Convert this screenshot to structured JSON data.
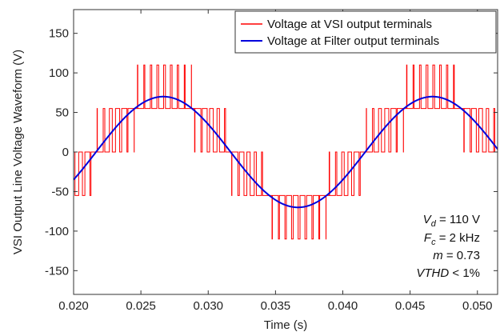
{
  "chart_data": {
    "type": "line",
    "xlabel": "Time (s)",
    "ylabel": "VSI Output Line Voltage Waveform (V)",
    "xlim": [
      0.02,
      0.0515
    ],
    "ylim": [
      -180,
      180
    ],
    "x_ticks": [
      0.02,
      0.025,
      0.03,
      0.035,
      0.04,
      0.045,
      0.05
    ],
    "x_tick_labels": [
      "0.020",
      "0.025",
      "0.030",
      "0.035",
      "0.040",
      "0.045",
      "0.050"
    ],
    "y_ticks": [
      -150,
      -100,
      -50,
      0,
      50,
      100,
      150
    ],
    "y_tick_labels": [
      "-150",
      "-100",
      "-50",
      "0",
      "50",
      "100",
      "150"
    ],
    "grid": false,
    "legend_position": "top-right",
    "series": [
      {
        "name": "Voltage at VSI output terminals",
        "color": "#ff0000",
        "style": "pwm",
        "levels": [
          -110,
          -55,
          0,
          55,
          110
        ],
        "fundamental": {
          "amplitude": 70,
          "frequency_hz": 50,
          "phase_deg": -30
        },
        "switching_frequency_hz": 2000
      },
      {
        "name": "Voltage at Filter output terminals",
        "color": "#0000dd",
        "style": "sine",
        "fundamental": {
          "amplitude": 70,
          "frequency_hz": 50,
          "phase_deg": -30
        }
      }
    ],
    "annotations": {
      "vd": {
        "sym": "V",
        "sub": "d",
        "rest": " = 110 V"
      },
      "fc": {
        "sym": "F",
        "sub": "c",
        "rest": " = 2 kHz"
      },
      "m": {
        "sym": "m",
        "rest": " = 0.73"
      },
      "vthd": {
        "sym": "VTHD",
        "rest": " < 1%"
      }
    }
  }
}
